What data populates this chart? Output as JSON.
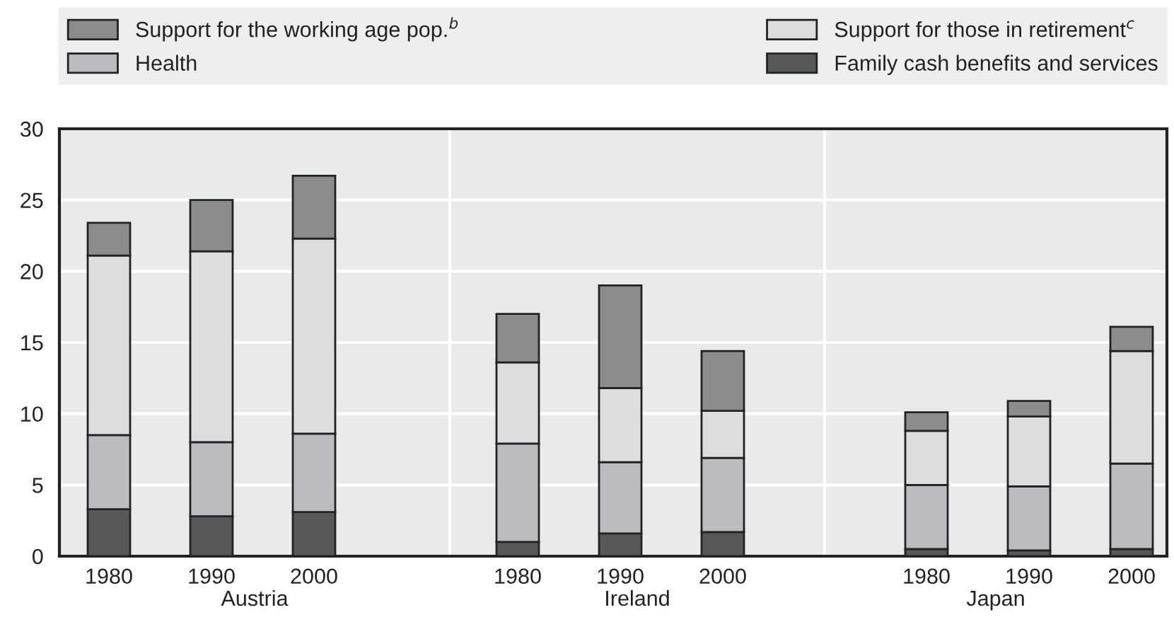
{
  "chart_data": [
    {
      "type": "bar",
      "stacked": true,
      "xlabel": "Austria",
      "categories": [
        "1980",
        "1990",
        "2000"
      ],
      "ylim": [
        0,
        30
      ],
      "yticks": [
        0,
        5,
        10,
        15,
        20,
        25,
        30
      ],
      "grid": "y",
      "legend": "top",
      "series": [
        {
          "name": "Family cash benefits and services",
          "color": "#58585a",
          "values": [
            3.3,
            2.8,
            3.1
          ]
        },
        {
          "name": "Health",
          "color": "#bbbcc0",
          "values": [
            5.2,
            5.2,
            5.5
          ]
        },
        {
          "name": "Support for those in retirement$^{c}$",
          "color": "#dcdddf",
          "values": [
            12.6,
            13.4,
            13.7
          ]
        },
        {
          "name": "Support for the working age pop.$^{b}$",
          "color": "#8c8c8c",
          "values": [
            2.3,
            3.6,
            4.4
          ]
        }
      ]
    },
    {
      "type": "bar",
      "stacked": true,
      "xlabel": "Ireland",
      "categories": [
        "1980",
        "1990",
        "2000"
      ],
      "ylim": [
        0,
        30
      ],
      "yticks": [
        0,
        5,
        10,
        15,
        20,
        25,
        30
      ],
      "grid": "y",
      "tick_labels": "x",
      "series": [
        {
          "color": "#58585a",
          "values": [
            1.0,
            1.6,
            1.7
          ]
        },
        {
          "color": "#bbbcc0",
          "values": [
            6.9,
            5.0,
            5.2
          ]
        },
        {
          "color": "#dcdddf",
          "values": [
            5.7,
            5.2,
            3.3
          ]
        },
        {
          "color": "#8c8c8c",
          "values": [
            3.4,
            7.2,
            4.2
          ]
        }
      ]
    },
    {
      "type": "bar",
      "stacked": true,
      "xlabel": "Japan",
      "categories": [
        "1980",
        "1990",
        "2000"
      ],
      "ylim": [
        0,
        30
      ],
      "yticks": [
        0,
        5,
        10,
        15,
        20,
        25,
        30
      ],
      "grid": "y",
      "tick_labels": "x",
      "series": [
        {
          "color": "#58585a",
          "values": [
            0.5,
            0.4,
            0.5
          ]
        },
        {
          "color": "#bbbcc0",
          "values": [
            4.5,
            4.5,
            6.0
          ]
        },
        {
          "color": "#dcdddf",
          "values": [
            3.8,
            4.9,
            7.9
          ]
        },
        {
          "color": "#8c8c8c",
          "values": [
            1.3,
            1.1,
            1.7
          ]
        }
      ]
    }
  ]
}
